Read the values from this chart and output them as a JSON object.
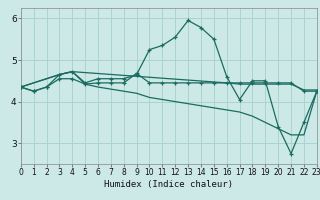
{
  "title": "",
  "xlabel": "Humidex (Indice chaleur)",
  "xlim": [
    0,
    23
  ],
  "ylim": [
    2.5,
    6.25
  ],
  "yticks": [
    3,
    4,
    5,
    6
  ],
  "xticks": [
    0,
    1,
    2,
    3,
    4,
    5,
    6,
    7,
    8,
    9,
    10,
    11,
    12,
    13,
    14,
    15,
    16,
    17,
    18,
    19,
    20,
    21,
    22,
    23
  ],
  "bg_color": "#cce9e7",
  "grid_color": "#aad4d0",
  "line_color": "#1a6b60",
  "lines": [
    {
      "x": [
        0,
        1,
        2,
        3,
        4,
        5,
        6,
        7,
        8,
        9,
        10,
        11,
        12,
        13,
        14,
        15,
        16,
        17,
        18,
        19,
        20,
        21,
        22,
        23
      ],
      "y": [
        4.35,
        4.25,
        4.35,
        4.55,
        4.55,
        4.42,
        4.45,
        4.45,
        4.45,
        4.68,
        4.45,
        4.45,
        4.45,
        4.45,
        4.45,
        4.45,
        4.45,
        4.45,
        4.45,
        4.45,
        4.45,
        4.45,
        4.25,
        4.25
      ],
      "marker": true
    },
    {
      "x": [
        0,
        1,
        2,
        3,
        4,
        5,
        6,
        7,
        8,
        9,
        10,
        11,
        12,
        13,
        14,
        15,
        16,
        17,
        18,
        19,
        20,
        21,
        22,
        23
      ],
      "y": [
        4.35,
        4.25,
        4.35,
        4.65,
        4.72,
        4.45,
        4.55,
        4.55,
        4.55,
        4.65,
        5.25,
        5.35,
        5.55,
        5.95,
        5.78,
        5.5,
        4.6,
        4.05,
        4.5,
        4.5,
        3.4,
        2.75,
        3.5,
        4.25
      ],
      "marker": true
    },
    {
      "x": [
        0,
        3,
        4,
        16,
        17,
        18,
        19,
        20,
        21,
        22,
        23
      ],
      "y": [
        4.35,
        4.65,
        4.72,
        4.45,
        4.42,
        4.42,
        4.42,
        4.42,
        4.42,
        4.28,
        4.28
      ],
      "marker": false
    },
    {
      "x": [
        0,
        3,
        4,
        5,
        6,
        7,
        8,
        9,
        10,
        11,
        12,
        13,
        14,
        15,
        16,
        17,
        18,
        19,
        20,
        21,
        22,
        23
      ],
      "y": [
        4.35,
        4.65,
        4.72,
        4.42,
        4.35,
        4.3,
        4.25,
        4.2,
        4.1,
        4.05,
        4.0,
        3.95,
        3.9,
        3.85,
        3.8,
        3.75,
        3.65,
        3.5,
        3.35,
        3.2,
        3.2,
        4.25
      ],
      "marker": false
    }
  ]
}
